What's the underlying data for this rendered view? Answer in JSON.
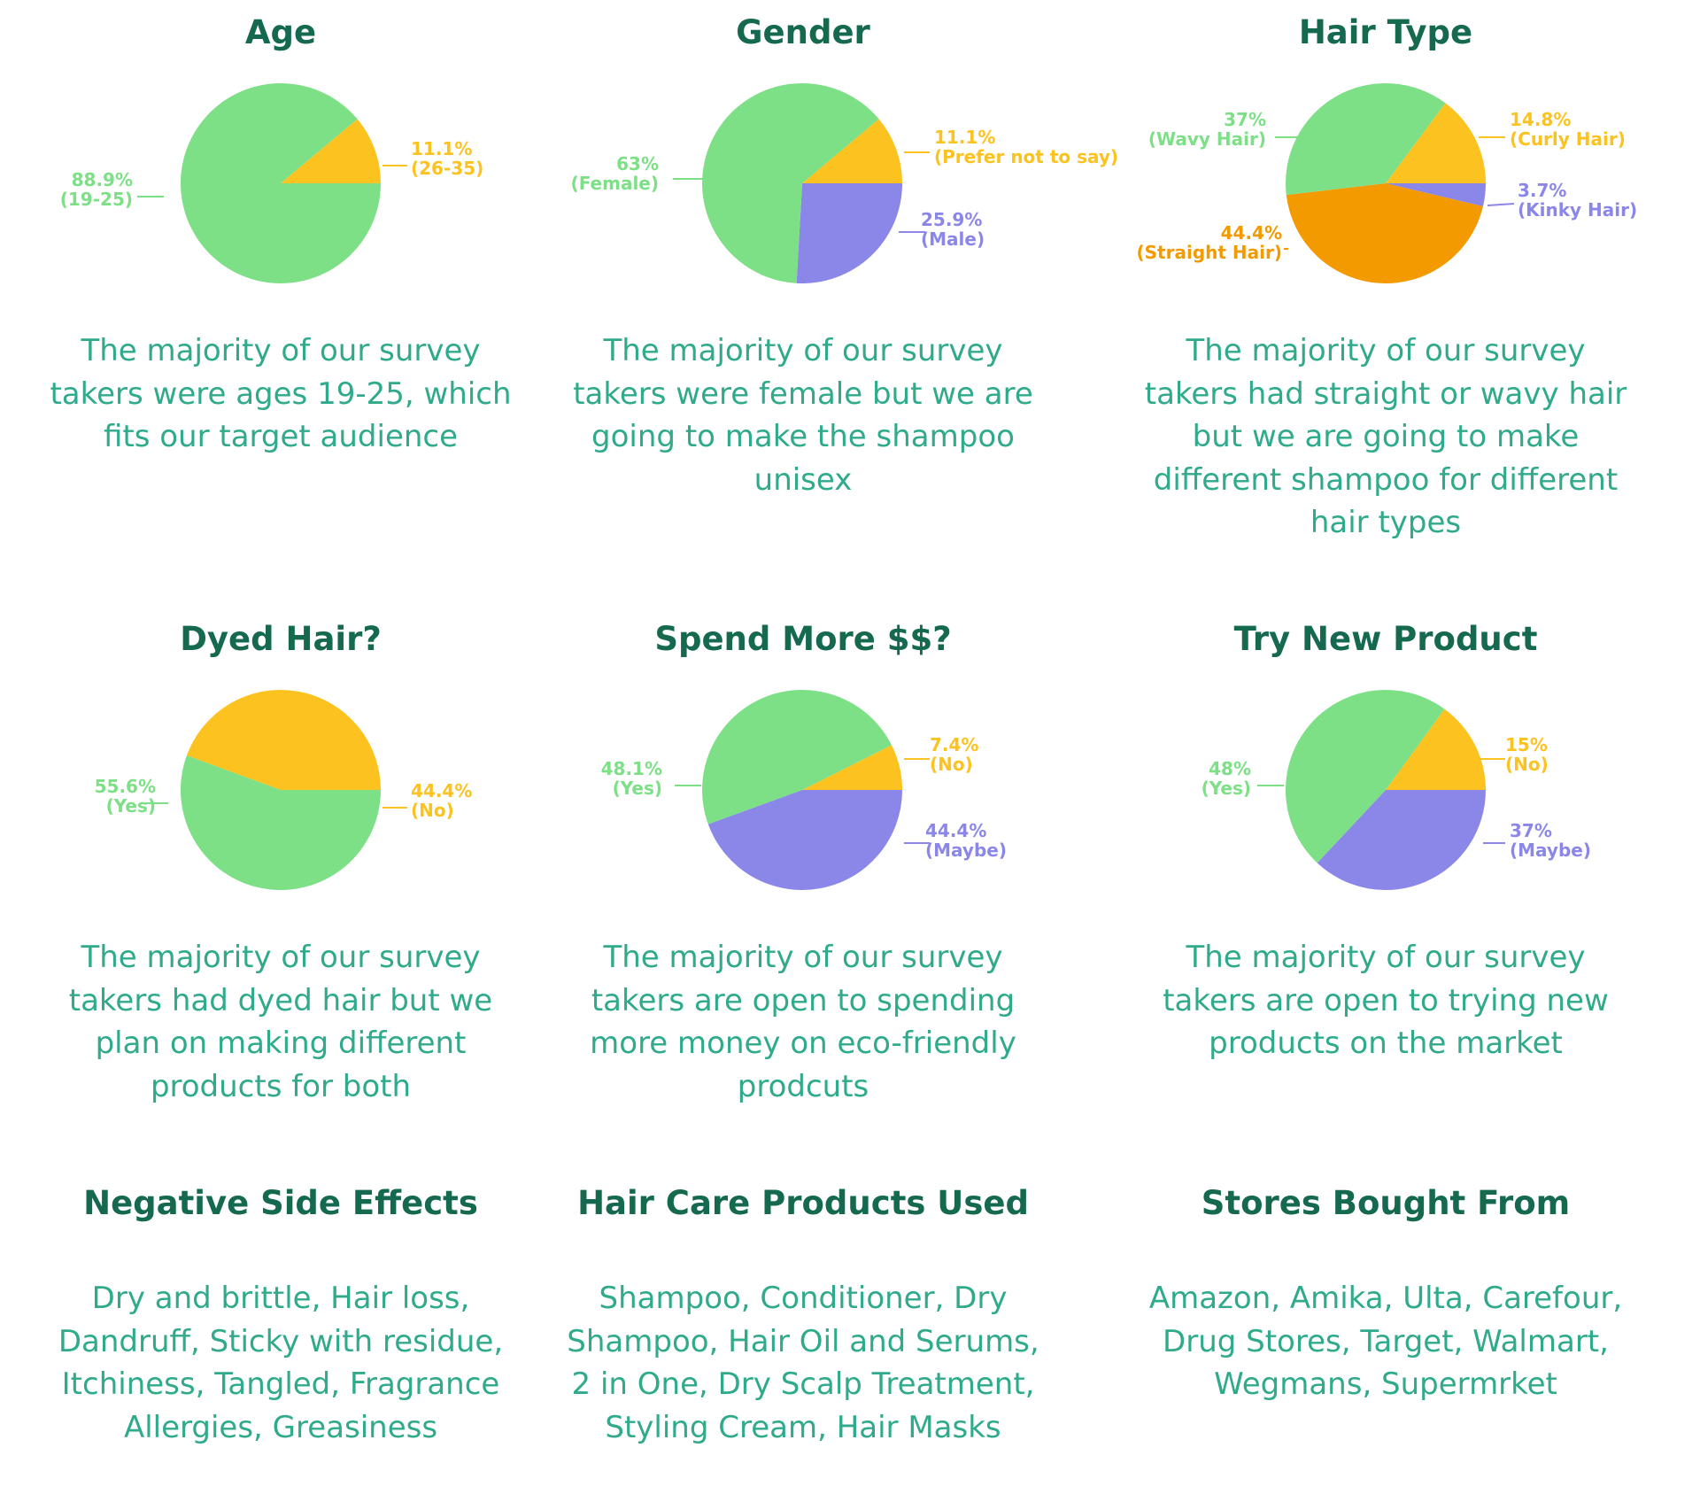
{
  "colors": {
    "green": "#7de087",
    "yellow": "#fcc21f",
    "purple": "#8b87e8",
    "orange": "#f49a01",
    "title": "#15694f",
    "text": "#2faa8b"
  },
  "chart_data": [
    {
      "type": "pie",
      "title": "Age",
      "slices": [
        {
          "pct": "11.1%",
          "label": "(26-35)",
          "value": 11.1,
          "color": "yellow"
        },
        {
          "pct": "88.9%",
          "label": "(19-25)",
          "value": 88.9,
          "color": "green"
        }
      ],
      "description": "The majority of our survey takers were ages 19-25, which fits our target audience"
    },
    {
      "type": "pie",
      "title": "Gender",
      "slices": [
        {
          "pct": "11.1%",
          "label": "(Prefer not to say)",
          "value": 11.1,
          "color": "yellow"
        },
        {
          "pct": "25.9%",
          "label": "(Male)",
          "value": 25.9,
          "color": "purple"
        },
        {
          "pct": "63%",
          "label": "(Female)",
          "value": 63,
          "color": "green"
        }
      ],
      "description": "The majority of our survey takers were female but we are going to make the shampoo unisex"
    },
    {
      "type": "pie",
      "title": "Hair Type",
      "slices": [
        {
          "pct": "14.8%",
          "label": "(Curly Hair)",
          "value": 14.8,
          "color": "yellow"
        },
        {
          "pct": "3.7%",
          "label": "(Kinky Hair)",
          "value": 3.7,
          "color": "purple"
        },
        {
          "pct": "44.4%",
          "label": "(Straight Hair)",
          "value": 44.4,
          "color": "orange"
        },
        {
          "pct": "37%",
          "label": "(Wavy Hair)",
          "value": 37,
          "color": "green"
        }
      ],
      "description": "The majority of our survey takers had straight or wavy hair but we are going to make different shampoo for different hair types"
    },
    {
      "type": "pie",
      "title": "Dyed Hair?",
      "slices": [
        {
          "pct": "44.4%",
          "label": "(No)",
          "value": 44.4,
          "color": "yellow"
        },
        {
          "pct": "55.6%",
          "label": "(Yes)",
          "value": 55.6,
          "color": "green"
        }
      ],
      "description": "The majority of our survey takers had dyed hair but we plan on making different products for both"
    },
    {
      "type": "pie",
      "title": "Spend More $$?",
      "slices": [
        {
          "pct": "7.4%",
          "label": "(No)",
          "value": 7.4,
          "color": "yellow"
        },
        {
          "pct": "44.4%",
          "label": "(Maybe)",
          "value": 44.4,
          "color": "purple"
        },
        {
          "pct": "48.1%",
          "label": "(Yes)",
          "value": 48.1,
          "color": "green"
        }
      ],
      "description": "The majority of our survey takers are open to spending more money on eco-friendly prodcuts"
    },
    {
      "type": "pie",
      "title": "Try New Product",
      "slices": [
        {
          "pct": "15%",
          "label": "(No)",
          "value": 15,
          "color": "yellow"
        },
        {
          "pct": "37%",
          "label": "(Maybe)",
          "value": 37,
          "color": "purple"
        },
        {
          "pct": "48%",
          "label": "(Yes)",
          "value": 48,
          "color": "green"
        }
      ],
      "description": "The majority of our survey takers are open to trying new products on the market"
    }
  ],
  "text_sections": [
    {
      "title": "Negative Side Effects",
      "description": "Dry and brittle, Hair loss, Dandruff, Sticky with residue, Itchiness, Tangled, Fragrance Allergies, Greasiness"
    },
    {
      "title": "Hair Care Products Used",
      "description": "Shampoo, Conditioner, Dry Shampoo, Hair Oil and Serums, 2 in One, Dry Scalp Treatment, Styling Cream, Hair Masks"
    },
    {
      "title": "Stores Bought From",
      "description": "Amazon, Amika, Ulta, Carefour, Drug Stores, Target, Walmart, Wegmans, Supermrket"
    }
  ]
}
